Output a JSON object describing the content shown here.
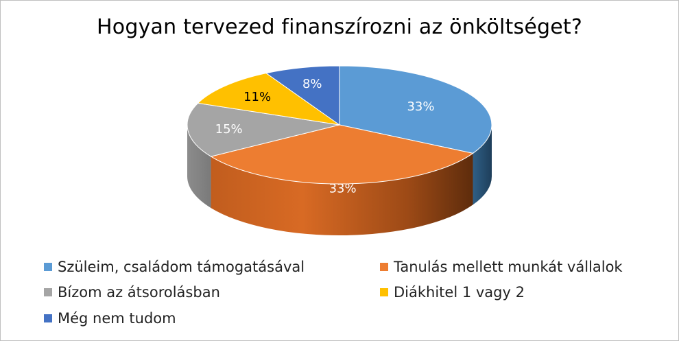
{
  "chart_data": {
    "type": "pie",
    "title": "Hogyan tervezed finanszírozni az önköltséget?",
    "categories": [
      "Szüleim, családom támogatásával",
      "Tanulás mellett munkát vállalok",
      "Bízom az átsorolásban",
      "Diákhitel 1 vagy 2",
      "Még nem tudom"
    ],
    "values": [
      33,
      33,
      15,
      11,
      8
    ],
    "data_labels": [
      "33%",
      "33%",
      "15%",
      "11%",
      "8%"
    ],
    "colors": [
      "#5B9BD5",
      "#ED7D31",
      "#A5A5A5",
      "#FFC000",
      "#4472C4"
    ],
    "label_colors": [
      "#ffffff",
      "#ffffff",
      "#ffffff",
      "#000000",
      "#ffffff"
    ],
    "legend_position": "bottom",
    "style": "3d-pie"
  }
}
